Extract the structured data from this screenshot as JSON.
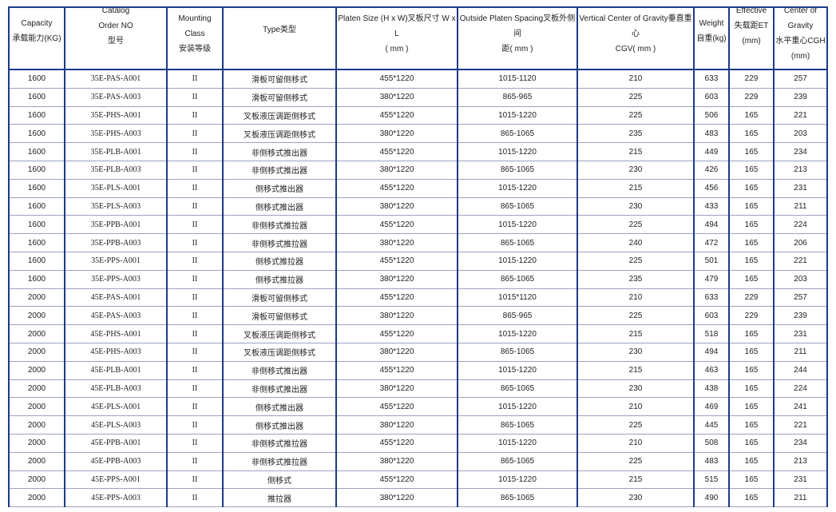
{
  "headers": [
    [
      "Capacity",
      "承载能力(KG)"
    ],
    [
      "Catalog",
      "Order NO",
      "型号"
    ],
    [
      "Mounting Class",
      "安装等级"
    ],
    [
      "Type类型"
    ],
    [
      "Platen Size (H x W)叉板尺寸 W x L",
      "( mm )"
    ],
    [
      "Outside Platen Spacing叉板外侧间",
      "距( mm )"
    ],
    [
      "Vertical Center of Gravity垂直重心",
      "CGV( mm )"
    ],
    [
      "Weight",
      "自重(kg)"
    ],
    [
      "Effective",
      "失载距ET",
      "(mm)"
    ],
    [
      "Center of",
      "Gravity",
      "水平重心CGH",
      "(mm)"
    ]
  ],
  "rows": [
    [
      "1600",
      "35E-PAS-A001",
      "II",
      "滑板可留侧移式",
      "455*1220",
      "1015-1120",
      "210",
      "633",
      "229",
      "257"
    ],
    [
      "1600",
      "35E-PAS-A003",
      "II",
      "滑板可留侧移式",
      "380*1220",
      "865-965",
      "225",
      "603",
      "229",
      "239"
    ],
    [
      "1600",
      "35E-PHS-A001",
      "II",
      "叉板液压调距侧移式",
      "455*1220",
      "1015-1220",
      "225",
      "506",
      "165",
      "221"
    ],
    [
      "1600",
      "35E-PHS-A003",
      "II",
      "叉板液压调距侧移式",
      "380*1220",
      "865-1065",
      "235",
      "483",
      "165",
      "203"
    ],
    [
      "1600",
      "35E-PLB-A001",
      "II",
      "非侧移式推出器",
      "455*1220",
      "1015-1220",
      "215",
      "449",
      "165",
      "234"
    ],
    [
      "1600",
      "35E-PLB-A003",
      "II",
      "非侧移式推出器",
      "380*1220",
      "865-1065",
      "230",
      "426",
      "165",
      "213"
    ],
    [
      "1600",
      "35E-PLS-A001",
      "II",
      "侧移式推出器",
      "455*1220",
      "1015-1220",
      "215",
      "456",
      "165",
      "231"
    ],
    [
      "1600",
      "35E-PLS-A003",
      "II",
      "侧移式推出器",
      "380*1220",
      "865-1065",
      "230",
      "433",
      "165",
      "211"
    ],
    [
      "1600",
      "35E-PPB-A001",
      "II",
      "非侧移式推拉器",
      "455*1220",
      "1015-1220",
      "225",
      "494",
      "165",
      "224"
    ],
    [
      "1600",
      "35E-PPB-A003",
      "II",
      "非侧移式推拉器",
      "380*1220",
      "865-1065",
      "240",
      "472",
      "165",
      "206"
    ],
    [
      "1600",
      "35E-PPS-A001",
      "II",
      "侧移式推拉器",
      "455*1220",
      "1015-1220",
      "225",
      "501",
      "165",
      "221"
    ],
    [
      "1600",
      "35E-PPS-A003",
      "II",
      "侧移式推拉器",
      "380*1220",
      "865-1065",
      "235",
      "479",
      "165",
      "203"
    ],
    [
      "2000",
      "45E-PAS-A001",
      "II",
      "滑板可留侧移式",
      "455*1220",
      "1015*1120",
      "210",
      "633",
      "229",
      "257"
    ],
    [
      "2000",
      "45E-PAS-A003",
      "II",
      "滑板可留侧移式",
      "380*1220",
      "865-965",
      "225",
      "603",
      "229",
      "239"
    ],
    [
      "2000",
      "45E-PHS-A001",
      "II",
      "叉板液压调距侧移式",
      "455*1220",
      "1015-1220",
      "215",
      "518",
      "165",
      "231"
    ],
    [
      "2000",
      "45E-PHS-A003",
      "II",
      "叉板液压调距侧移式",
      "380*1220",
      "865-1065",
      "230",
      "494",
      "165",
      "211"
    ],
    [
      "2000",
      "45E-PLB-A001",
      "II",
      "非侧移式推出器",
      "455*1220",
      "1015-1220",
      "215",
      "463",
      "165",
      "244"
    ],
    [
      "2000",
      "45E-PLB-A003",
      "II",
      "非侧移式推出器",
      "380*1220",
      "865-1065",
      "230",
      "438",
      "165",
      "224"
    ],
    [
      "2000",
      "45E-PLS-A001",
      "II",
      "侧移式推出器",
      "455*1220",
      "1015-1220",
      "210",
      "469",
      "165",
      "241"
    ],
    [
      "2000",
      "45E-PLS-A003",
      "II",
      "侧移式推出器",
      "380*1220",
      "865-1065",
      "225",
      "445",
      "165",
      "221"
    ],
    [
      "2000",
      "45E-PPB-A001",
      "II",
      "非侧移式推拉器",
      "455*1220",
      "1015-1220",
      "210",
      "508",
      "165",
      "234"
    ],
    [
      "2000",
      "45E-PPB-A003",
      "II",
      "非侧移式推拉器",
      "380*1220",
      "865-1065",
      "225",
      "483",
      "165",
      "213"
    ],
    [
      "2000",
      "45E-PPS-A001",
      "II",
      "侧移式",
      "455*1220",
      "1015-1220",
      "215",
      "515",
      "165",
      "231"
    ],
    [
      "2000",
      "45E-PPS-A003",
      "II",
      "推拉器",
      "380*1220",
      "865-1065",
      "230",
      "490",
      "165",
      "211"
    ]
  ]
}
